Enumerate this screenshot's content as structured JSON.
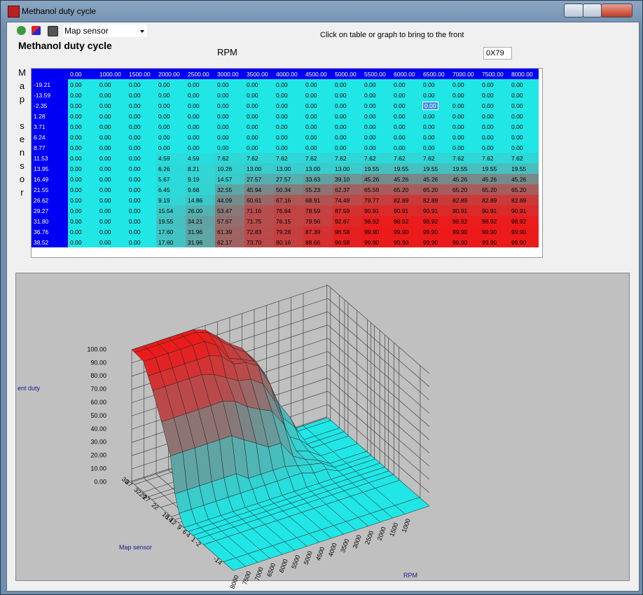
{
  "window": {
    "title": "Methanol duty cycle"
  },
  "toolbar": {
    "dropdown": "Map sensor",
    "hint": "Click on table or graph to bring to the front"
  },
  "heading": "Methanol duty cycle",
  "x_axis_label": "RPM",
  "address": "0X79",
  "y_axis_label": "Map sensor",
  "table": {
    "columns": [
      "0.00",
      "1000.00",
      "1500.00",
      "2000.00",
      "2500.00",
      "3000.00",
      "3500.00",
      "4000.00",
      "4500.00",
      "5000.00",
      "5500.00",
      "6000.00",
      "6500.00",
      "7000.00",
      "7500.00",
      "8000.00"
    ],
    "selected": {
      "row": 2,
      "col": 12
    },
    "rows": [
      {
        "label": "-19.21",
        "cells": [
          "0.00",
          "0.00",
          "0.00",
          "0.00",
          "0.00",
          "0.00",
          "0.00",
          "0.00",
          "0.00",
          "0.00",
          "0.00",
          "0.00",
          "0.00",
          "0.00",
          "0.00",
          "0.00"
        ]
      },
      {
        "label": "-13.59",
        "cells": [
          "0.00",
          "0.00",
          "0.00",
          "0.00",
          "0.00",
          "0.00",
          "0.00",
          "0.00",
          "0.00",
          "0.00",
          "0.00",
          "0.00",
          "0.00",
          "0.00",
          "0.00",
          "0.00"
        ]
      },
      {
        "label": "-2.35",
        "cells": [
          "0.00",
          "0.00",
          "0.00",
          "0.00",
          "0.00",
          "0.00",
          "0.00",
          "0.00",
          "0.00",
          "0.00",
          "0.00",
          "0.00",
          "0.00",
          "0.00",
          "0.00",
          "0.00"
        ]
      },
      {
        "label": "1.28",
        "cells": [
          "0.00",
          "0.00",
          "0.00",
          "0.00",
          "0.00",
          "0.00",
          "0.00",
          "0.00",
          "0.00",
          "0.00",
          "0.00",
          "0.00",
          "0.00",
          "0.00",
          "0.00",
          "0.00"
        ]
      },
      {
        "label": "3.71",
        "cells": [
          "0.00",
          "0.00",
          "0.00",
          "0.00",
          "0.00",
          "0.00",
          "0.00",
          "0.00",
          "0.00",
          "0.00",
          "0.00",
          "0.00",
          "0.00",
          "0.00",
          "0.00",
          "0.00"
        ]
      },
      {
        "label": "6.24",
        "cells": [
          "0.00",
          "0.00",
          "0.00",
          "0.00",
          "0.00",
          "0.00",
          "0.00",
          "0.00",
          "0.00",
          "0.00",
          "0.00",
          "0.00",
          "0.00",
          "0.00",
          "0.00",
          "0.00"
        ]
      },
      {
        "label": "8.77",
        "cells": [
          "0.00",
          "0.00",
          "0.00",
          "0.00",
          "0.00",
          "0.00",
          "0.00",
          "0.00",
          "0.00",
          "0.00",
          "0.00",
          "0.00",
          "0.00",
          "0.00",
          "0.00",
          "0.00"
        ]
      },
      {
        "label": "11.53",
        "cells": [
          "0.00",
          "0.00",
          "0.00",
          "4.59",
          "4.59",
          "7.62",
          "7.62",
          "7.62",
          "7.62",
          "7.62",
          "7.62",
          "7.62",
          "7.62",
          "7.62",
          "7.62",
          "7.62"
        ]
      },
      {
        "label": "13.95",
        "cells": [
          "0.00",
          "0.00",
          "0.00",
          "6.26",
          "8.21",
          "10.26",
          "13.00",
          "13.00",
          "13.00",
          "13.00",
          "19.55",
          "19.55",
          "19.55",
          "19.55",
          "19.55",
          "19.55"
        ]
      },
      {
        "label": "16.49",
        "cells": [
          "0.00",
          "0.00",
          "0.00",
          "5.67",
          "9.19",
          "14.57",
          "27.57",
          "27.57",
          "33.63",
          "39.10",
          "45.26",
          "45.26",
          "45.26",
          "45.26",
          "45.26",
          "45.26"
        ]
      },
      {
        "label": "21.55",
        "cells": [
          "0.00",
          "0.00",
          "0.00",
          "6.45",
          "9.68",
          "32.55",
          "45.94",
          "50.34",
          "55.23",
          "62.37",
          "65.59",
          "65.20",
          "65.20",
          "65.20",
          "65.20",
          "65.20"
        ]
      },
      {
        "label": "26.62",
        "cells": [
          "0.00",
          "0.00",
          "0.00",
          "9.19",
          "14.86",
          "44.09",
          "60.61",
          "67.16",
          "68.91",
          "74.49",
          "79.77",
          "82.89",
          "82.89",
          "82.89",
          "82.89",
          "82.89"
        ]
      },
      {
        "label": "29.27",
        "cells": [
          "0.00",
          "0.00",
          "0.00",
          "15.54",
          "26.00",
          "53.47",
          "71.16",
          "76.64",
          "78.59",
          "87.59",
          "90.91",
          "90.91",
          "90.91",
          "90.91",
          "90.91",
          "90.91"
        ]
      },
      {
        "label": "31.80",
        "cells": [
          "0.00",
          "0.00",
          "0.00",
          "19.55",
          "34.21",
          "57.67",
          "71.75",
          "76.15",
          "79.96",
          "92.67",
          "98.92",
          "98.92",
          "98.92",
          "98.92",
          "98.92",
          "98.92"
        ]
      },
      {
        "label": "36.76",
        "cells": [
          "0.00",
          "0.00",
          "0.00",
          "17.60",
          "31.96",
          "61.39",
          "72.83",
          "79.28",
          "87.39",
          "96.58",
          "99.90",
          "99.90",
          "99.90",
          "99.90",
          "99.90",
          "99.90"
        ]
      },
      {
        "label": "38.52",
        "cells": [
          "0.00",
          "0.00",
          "0.00",
          "17.60",
          "31.96",
          "62.17",
          "73.70",
          "80.16",
          "88.66",
          "96.58",
          "99.90",
          "99.90",
          "99.90",
          "99.90",
          "99.90",
          "99.90"
        ]
      }
    ]
  },
  "graph": {
    "z_axis_label": "ent duty",
    "map_axis_label": "Map sensor",
    "rpm_axis_label": "RPM",
    "zlim": [
      0,
      100
    ],
    "rpm_lim": [
      0,
      8000
    ],
    "map_lim": [
      -19.21,
      38.52
    ],
    "zticks": [
      {
        "value": 0,
        "label": "0.00"
      },
      {
        "value": 10,
        "label": "10.00"
      },
      {
        "value": 20,
        "label": "20.00"
      },
      {
        "value": 30,
        "label": "30.00"
      },
      {
        "value": 40,
        "label": "40.00"
      },
      {
        "value": 50,
        "label": "50.00"
      },
      {
        "value": 60,
        "label": "60.00"
      },
      {
        "value": 70,
        "label": "70.00"
      },
      {
        "value": 80,
        "label": "80.00"
      },
      {
        "value": 90,
        "label": "90.00"
      },
      {
        "value": 100,
        "label": "100.00"
      }
    ],
    "rpm_ticks": [
      1000,
      1500,
      2000,
      2500,
      3000,
      3500,
      4000,
      4500,
      5000,
      5500,
      6000,
      6500,
      7000,
      7500,
      8000
    ],
    "map_ticks": [
      39,
      37,
      32,
      29,
      27,
      22,
      16,
      14,
      12,
      9,
      6,
      4,
      1,
      -2,
      -14
    ]
  }
}
